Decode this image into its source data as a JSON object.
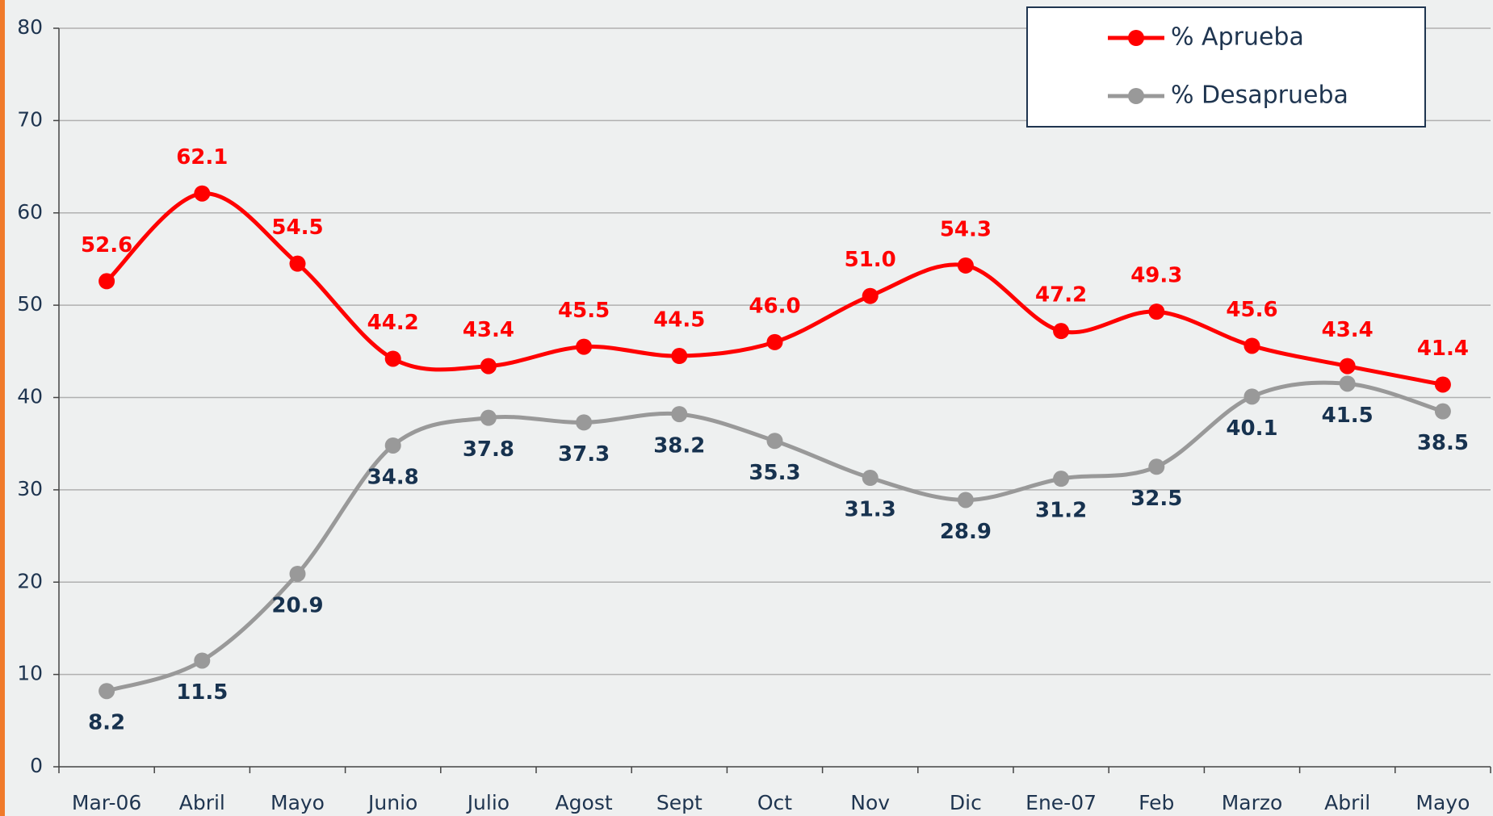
{
  "chart_data": {
    "type": "line",
    "categories": [
      "Mar-06",
      "Abril",
      "Mayo",
      "Junio",
      "Julio",
      "Agost",
      "Sept",
      "Oct",
      "Nov",
      "Dic",
      "Ene-07",
      "Feb",
      "Marzo",
      "Abril",
      "Mayo"
    ],
    "series": [
      {
        "name": "% Aprueba",
        "color": "#ff0000",
        "label_color": "#ff0000",
        "label_position": "above",
        "values": [
          52.6,
          62.1,
          54.5,
          44.2,
          43.4,
          45.5,
          44.5,
          46.0,
          51.0,
          54.3,
          47.2,
          49.3,
          45.6,
          43.4,
          41.4
        ],
        "value_labels": [
          "52.6",
          "62.1",
          "54.5",
          "44.2",
          "43.4",
          "45.5",
          "44.5",
          "46.0",
          "51.0",
          "54.3",
          "47.2",
          "49.3",
          "45.6",
          "43.4",
          "41.4"
        ]
      },
      {
        "name": "% Desaprueba",
        "color": "#999999",
        "label_color": "#17324f",
        "label_position": "below",
        "values": [
          8.2,
          11.5,
          20.9,
          34.8,
          37.8,
          37.3,
          38.2,
          35.3,
          31.3,
          28.9,
          31.2,
          32.5,
          40.1,
          41.5,
          38.5
        ],
        "value_labels": [
          "8.2",
          "11.5",
          "20.9",
          "34.8",
          "37.8",
          "37.3",
          "38.2",
          "35.3",
          "31.3",
          "28.9",
          "31.2",
          "32.5",
          "40.1",
          "41.5",
          "38.5"
        ]
      }
    ],
    "ylim": [
      0,
      80
    ],
    "yticks": [
      0,
      10,
      20,
      30,
      40,
      50,
      60,
      70,
      80
    ],
    "grid": true,
    "smooth": true,
    "legend": "top-right"
  }
}
